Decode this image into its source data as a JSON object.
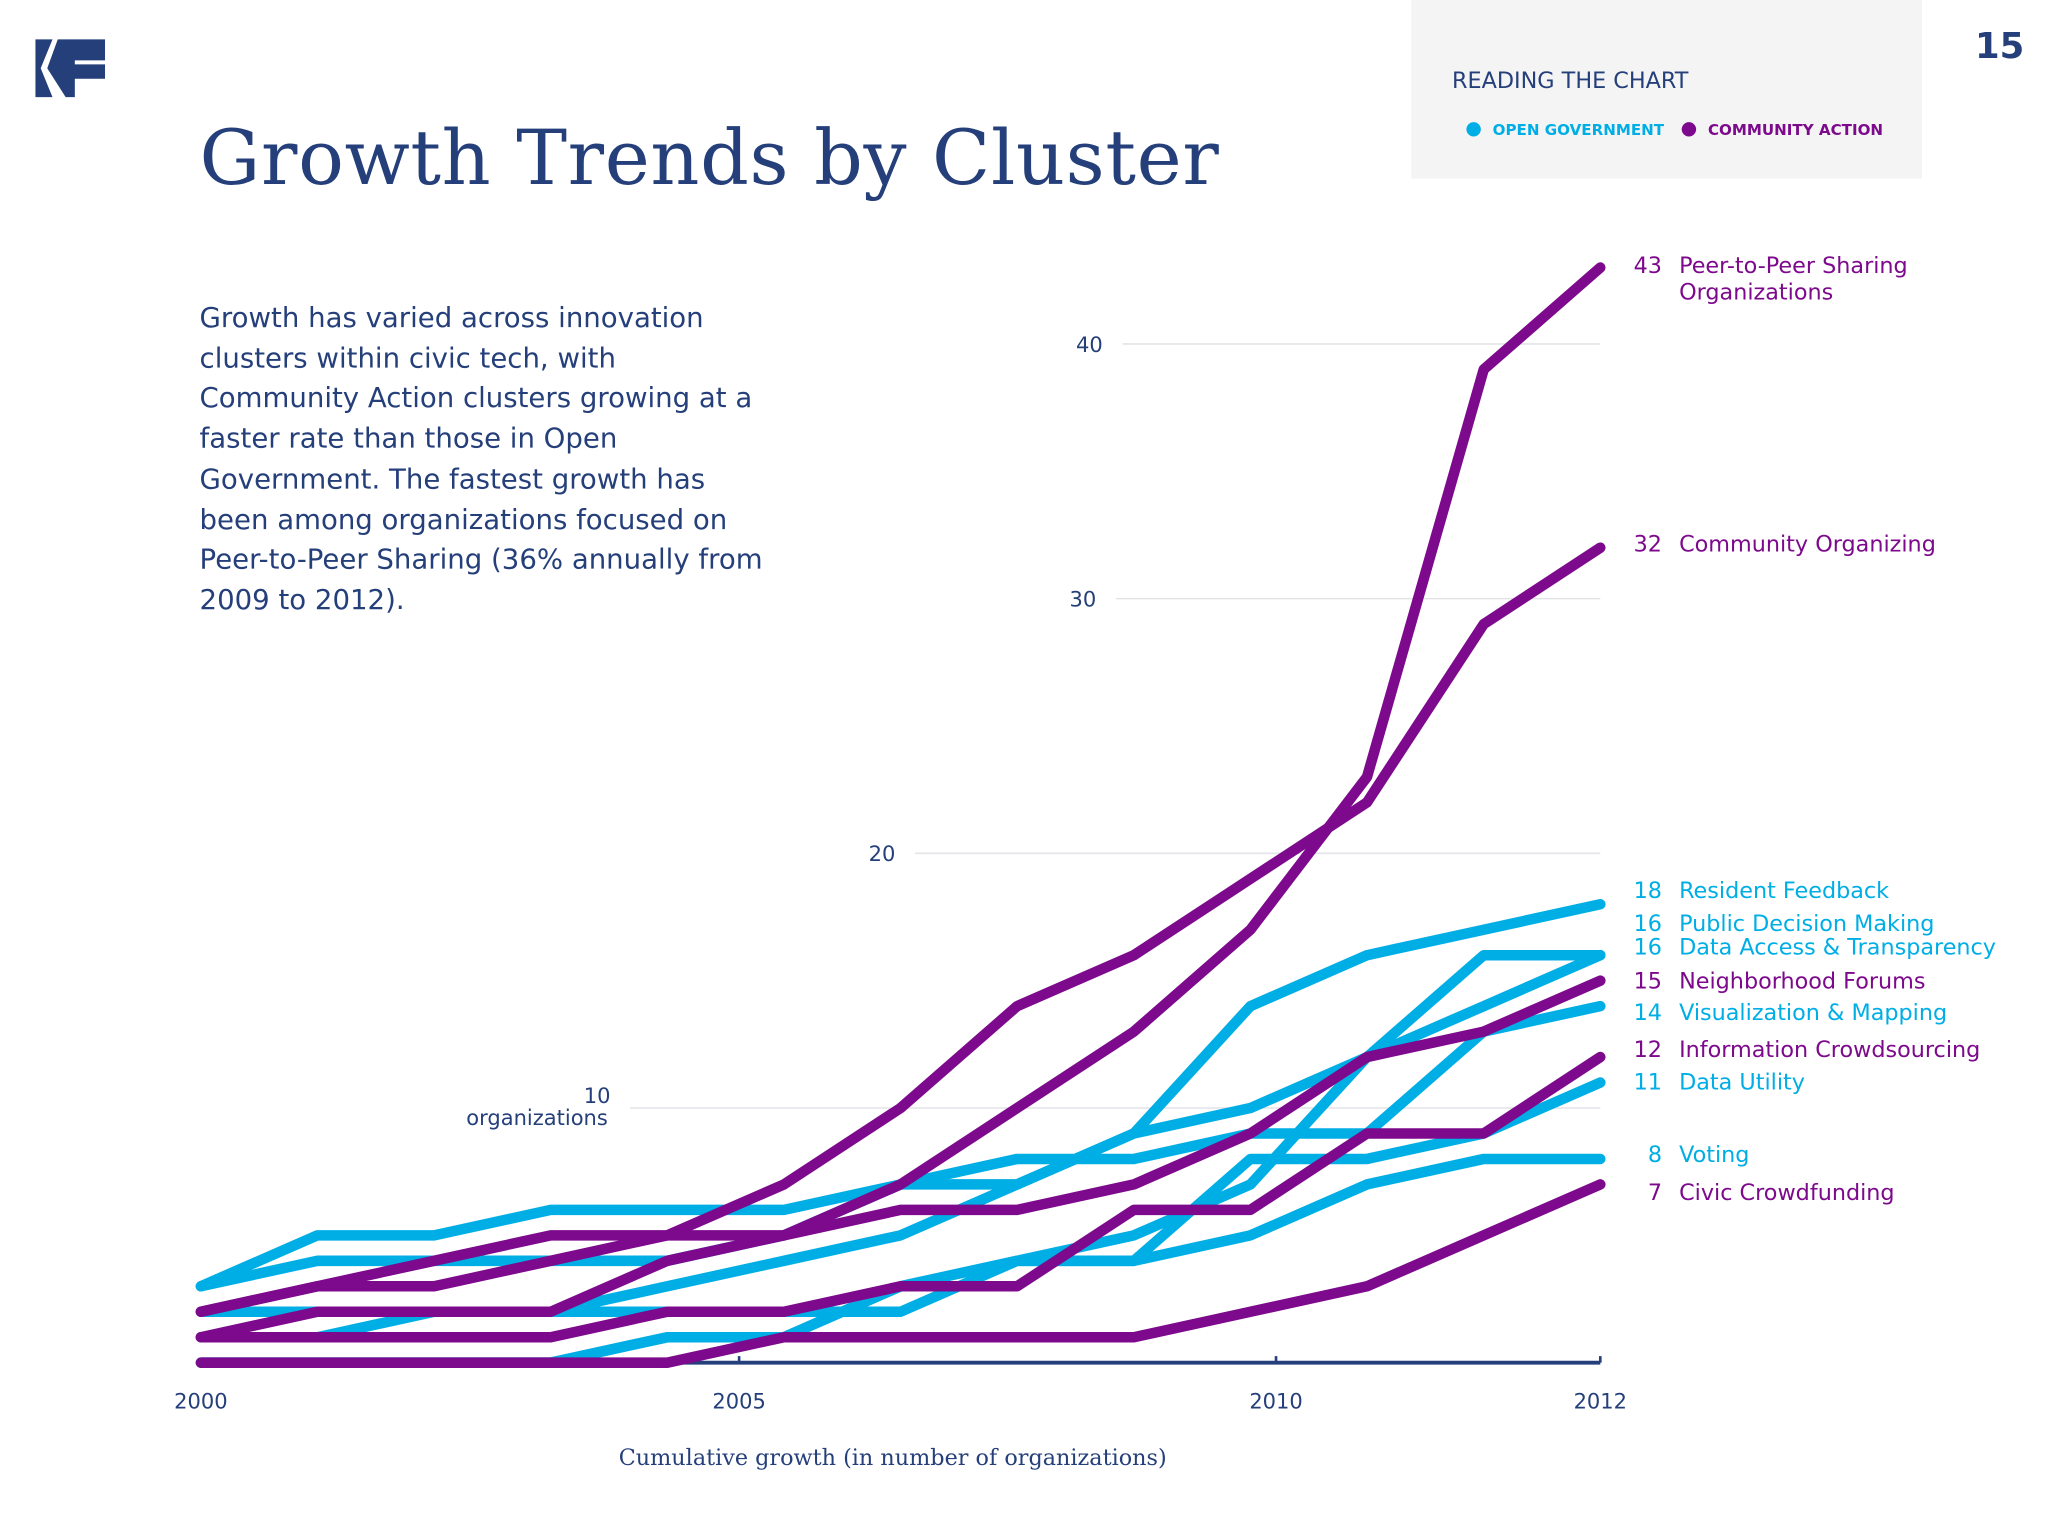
{
  "header": {
    "page_number": "15",
    "title": "Growth Trends by Cluster",
    "logo": "KF"
  },
  "legend": {
    "title": "READING THE CHART",
    "items": [
      {
        "label": "OPEN GOVERNMENT",
        "color": "#00aee6"
      },
      {
        "label": "COMMUNITY ACTION",
        "color": "#7d0a8c"
      }
    ]
  },
  "intro_text": "Growth has varied across innovation clusters within civic tech, with Community Action clusters growing at a faster rate than those in Open Government. The fastest growth has been among organizations focused on Peer-to-Peer Sharing (36% annually from 2009 to 2012).",
  "chart_data": {
    "type": "line",
    "xlabel": "Cumulative growth (in number of organizations)",
    "ylabel": "organizations",
    "x": [
      2000,
      2001,
      2002,
      2003,
      2004,
      2005,
      2006,
      2007,
      2008,
      2009,
      2010,
      2011,
      2012
    ],
    "x_ticks": [
      "2000",
      "2005",
      "2010",
      "2012"
    ],
    "y_ticks": [
      "10",
      "20",
      "30",
      "40"
    ],
    "ylim": [
      0,
      43
    ],
    "grid": true,
    "series": [
      {
        "name": "Peer-to-Peer Sharing Organizations",
        "name_lines": [
          "Peer-to-Peer Sharing",
          "Organizations"
        ],
        "cluster": "Community Action",
        "final": "43",
        "values": [
          1,
          2,
          2,
          2,
          4,
          5,
          7,
          10,
          13,
          17,
          23,
          39,
          43
        ]
      },
      {
        "name": "Community Organizing",
        "cluster": "Community Action",
        "final": "32",
        "values": [
          2,
          3,
          4,
          5,
          5,
          7,
          10,
          14,
          16,
          19,
          22,
          29,
          32
        ]
      },
      {
        "name": "Resident Feedback",
        "cluster": "Open Government",
        "final": "18",
        "values": [
          3,
          4,
          4,
          4,
          4,
          5,
          7,
          7,
          9,
          14,
          16,
          17,
          18
        ]
      },
      {
        "name": "Public Decision Making",
        "cluster": "Open Government",
        "final": "16",
        "values": [
          0,
          0,
          0,
          0,
          1,
          1,
          3,
          4,
          5,
          7,
          12,
          16,
          16
        ]
      },
      {
        "name": "Data Access & Transparency",
        "cluster": "Open Government",
        "final": "16",
        "values": [
          1,
          1,
          2,
          2,
          3,
          4,
          5,
          7,
          9,
          10,
          12,
          14,
          16
        ]
      },
      {
        "name": "Neighborhood Forums",
        "cluster": "Community Action",
        "final": "15",
        "values": [
          2,
          3,
          3,
          4,
          5,
          5,
          6,
          6,
          7,
          9,
          12,
          13,
          15
        ]
      },
      {
        "name": "Visualization & Mapping",
        "cluster": "Open Government",
        "final": "14",
        "values": [
          3,
          5,
          5,
          6,
          6,
          6,
          7,
          8,
          8,
          9,
          9,
          13,
          14
        ]
      },
      {
        "name": "Information Crowdsourcing",
        "cluster": "Community Action",
        "final": "12",
        "values": [
          1,
          1,
          1,
          1,
          2,
          2,
          3,
          3,
          6,
          6,
          9,
          9,
          12
        ]
      },
      {
        "name": "Data Utility",
        "cluster": "Open Government",
        "final": "11",
        "values": [
          2,
          2,
          2,
          2,
          2,
          2,
          2,
          4,
          4,
          8,
          8,
          9,
          11
        ]
      },
      {
        "name": "Voting",
        "cluster": "Open Government",
        "final": "8",
        "values": [
          0,
          0,
          0,
          0,
          1,
          1,
          3,
          4,
          4,
          5,
          7,
          8,
          8
        ]
      },
      {
        "name": "Civic Crowdfunding",
        "cluster": "Community Action",
        "final": "7",
        "values": [
          0,
          0,
          0,
          0,
          0,
          1,
          1,
          1,
          1,
          2,
          3,
          5,
          7
        ]
      }
    ]
  }
}
